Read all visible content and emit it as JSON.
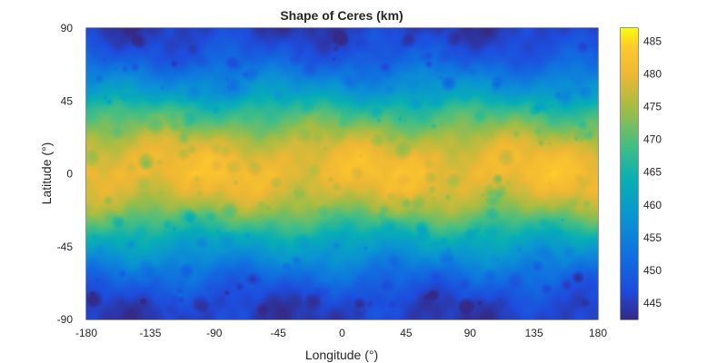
{
  "chart_data": {
    "type": "heatmap",
    "title": "Shape of Ceres (km)",
    "xlabel": "Longitude (°)",
    "ylabel": "Latitude (°)",
    "xlim": [
      -180,
      180
    ],
    "ylim": [
      -90,
      90
    ],
    "xticks": [
      -180,
      -135,
      -90,
      -45,
      0,
      45,
      90,
      135,
      180
    ],
    "yticks": [
      -90,
      -45,
      0,
      45,
      90
    ],
    "grid": false,
    "colorbar": {
      "placement": "right",
      "clim": [
        442.5,
        487
      ],
      "ticks": [
        445,
        450,
        455,
        460,
        465,
        470,
        475,
        480,
        485
      ],
      "colormap": "parula"
    },
    "latitude_profile": {
      "lat": [
        -90,
        -80,
        -70,
        -60,
        -50,
        -40,
        -30,
        -20,
        -10,
        0,
        10,
        20,
        30,
        40,
        50,
        60,
        70,
        80,
        90
      ],
      "value": [
        445,
        446,
        449,
        453,
        458,
        463,
        469,
        475,
        479,
        481,
        480,
        477,
        472,
        467,
        460,
        455,
        450,
        447,
        445
      ]
    }
  }
}
